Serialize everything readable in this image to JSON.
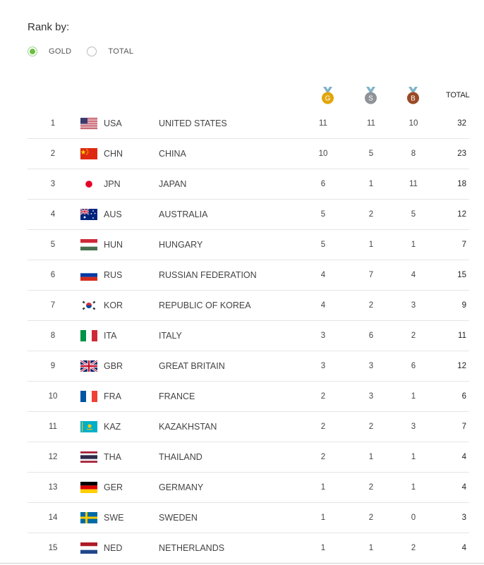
{
  "rank_by_label": "Rank by:",
  "options": [
    {
      "label": "GOLD",
      "checked": true
    },
    {
      "label": "TOTAL",
      "checked": false
    }
  ],
  "headers": {
    "gold": "G",
    "silver": "S",
    "bronze": "B",
    "total": "TOTAL"
  },
  "colors": {
    "gold": "#e3a50c",
    "silver": "#8f9398",
    "bronze": "#9a4a26",
    "ribbon": "#7fb3c9",
    "radio": "#6cbf3f"
  },
  "rows": [
    {
      "rank": "1",
      "code": "USA",
      "country": "UNITED STATES",
      "gold": "11",
      "silver": "11",
      "bronze": "10",
      "total": "32",
      "flag": "usa-flag-icon"
    },
    {
      "rank": "2",
      "code": "CHN",
      "country": "CHINA",
      "gold": "10",
      "silver": "5",
      "bronze": "8",
      "total": "23",
      "flag": "china-flag-icon"
    },
    {
      "rank": "3",
      "code": "JPN",
      "country": "JAPAN",
      "gold": "6",
      "silver": "1",
      "bronze": "11",
      "total": "18",
      "flag": "japan-flag-icon"
    },
    {
      "rank": "4",
      "code": "AUS",
      "country": "AUSTRALIA",
      "gold": "5",
      "silver": "2",
      "bronze": "5",
      "total": "12",
      "flag": "australia-flag-icon"
    },
    {
      "rank": "5",
      "code": "HUN",
      "country": "HUNGARY",
      "gold": "5",
      "silver": "1",
      "bronze": "1",
      "total": "7",
      "flag": "hungary-flag-icon"
    },
    {
      "rank": "6",
      "code": "RUS",
      "country": "RUSSIAN FEDERATION",
      "gold": "4",
      "silver": "7",
      "bronze": "4",
      "total": "15",
      "flag": "russia-flag-icon"
    },
    {
      "rank": "7",
      "code": "KOR",
      "country": "REPUBLIC OF KOREA",
      "gold": "4",
      "silver": "2",
      "bronze": "3",
      "total": "9",
      "flag": "korea-flag-icon"
    },
    {
      "rank": "8",
      "code": "ITA",
      "country": "ITALY",
      "gold": "3",
      "silver": "6",
      "bronze": "2",
      "total": "11",
      "flag": "italy-flag-icon"
    },
    {
      "rank": "9",
      "code": "GBR",
      "country": "GREAT BRITAIN",
      "gold": "3",
      "silver": "3",
      "bronze": "6",
      "total": "12",
      "flag": "gb-flag-icon"
    },
    {
      "rank": "10",
      "code": "FRA",
      "country": "FRANCE",
      "gold": "2",
      "silver": "3",
      "bronze": "1",
      "total": "6",
      "flag": "france-flag-icon"
    },
    {
      "rank": "11",
      "code": "KAZ",
      "country": "KAZAKHSTAN",
      "gold": "2",
      "silver": "2",
      "bronze": "3",
      "total": "7",
      "flag": "kazakhstan-flag-icon"
    },
    {
      "rank": "12",
      "code": "THA",
      "country": "THAILAND",
      "gold": "2",
      "silver": "1",
      "bronze": "1",
      "total": "4",
      "flag": "thailand-flag-icon"
    },
    {
      "rank": "13",
      "code": "GER",
      "country": "GERMANY",
      "gold": "1",
      "silver": "2",
      "bronze": "1",
      "total": "4",
      "flag": "germany-flag-icon"
    },
    {
      "rank": "14",
      "code": "SWE",
      "country": "SWEDEN",
      "gold": "1",
      "silver": "2",
      "bronze": "0",
      "total": "3",
      "flag": "sweden-flag-icon"
    },
    {
      "rank": "15",
      "code": "NED",
      "country": "NETHERLANDS",
      "gold": "1",
      "silver": "1",
      "bronze": "2",
      "total": "4",
      "flag": "netherlands-flag-icon"
    }
  ]
}
